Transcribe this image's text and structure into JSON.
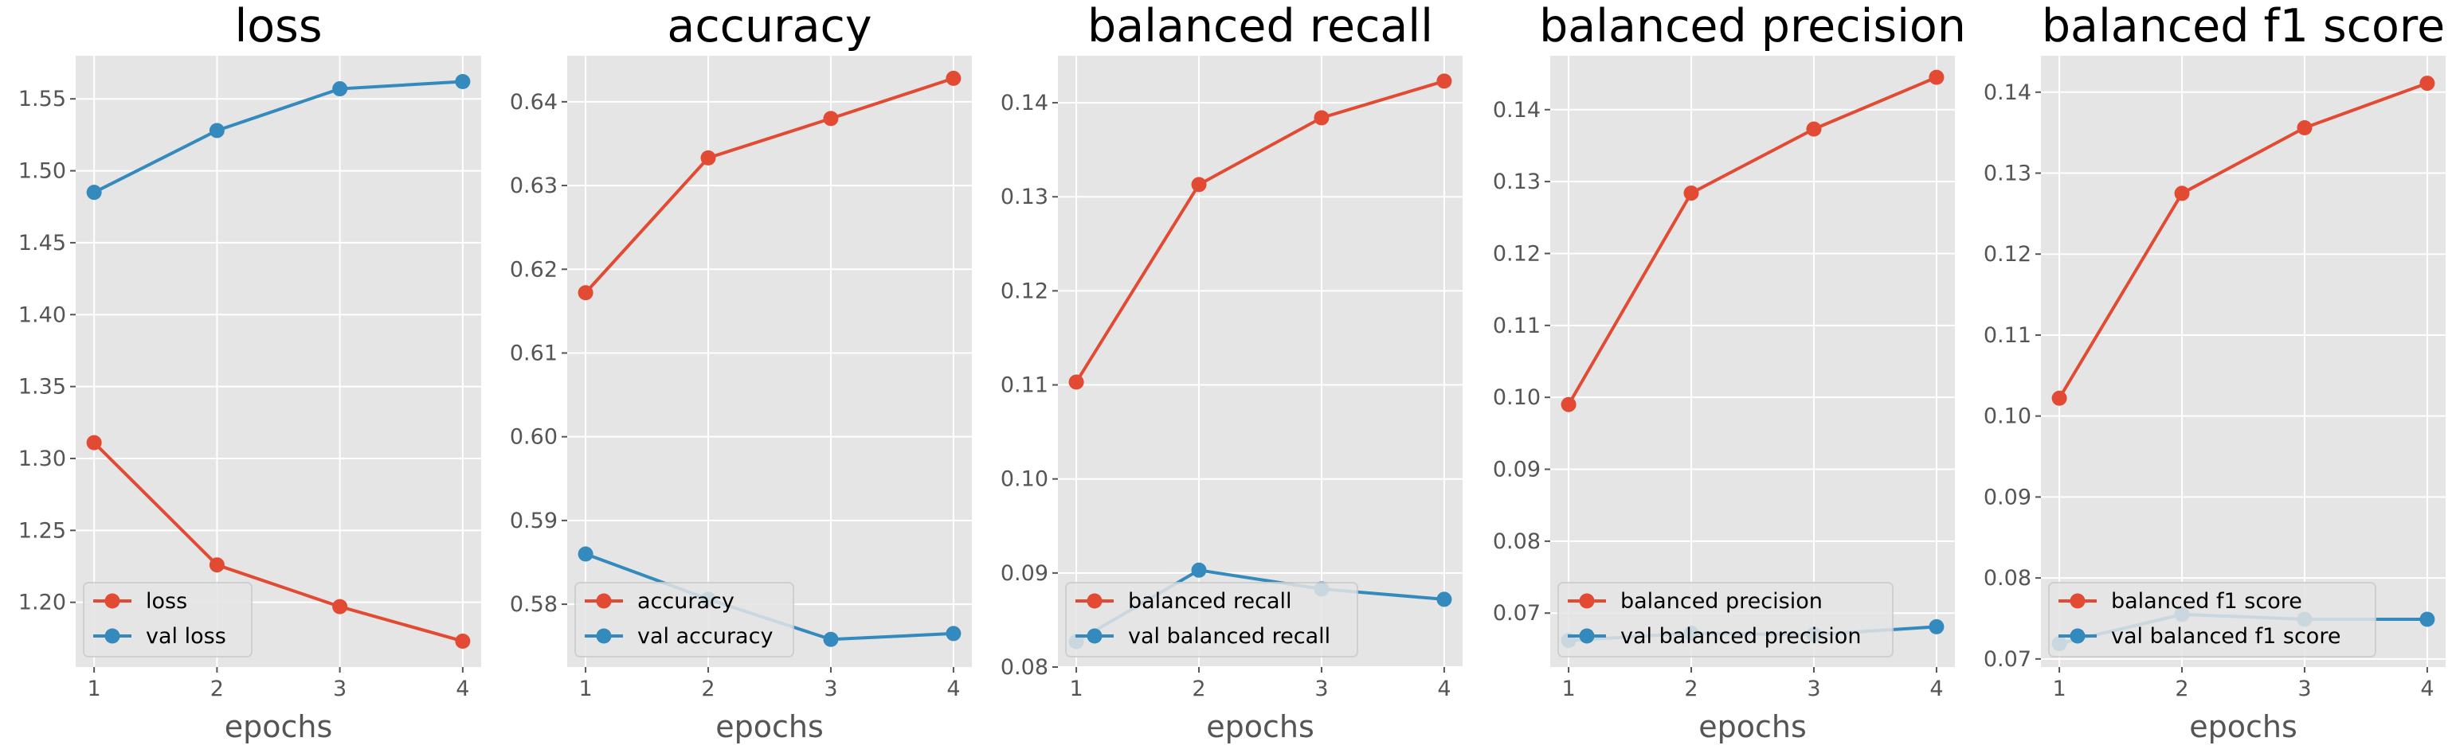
{
  "chart_data": [
    {
      "type": "line",
      "title": "loss",
      "xlabel": "epochs",
      "ylabel": "",
      "x": [
        1,
        2,
        3,
        4
      ],
      "xticks": [
        "1",
        "2",
        "3",
        "4"
      ],
      "ylim": [
        1.155,
        1.58
      ],
      "yticks": [
        1.2,
        1.25,
        1.3,
        1.35,
        1.4,
        1.45,
        1.5,
        1.55
      ],
      "ytick_labels": [
        "1.20",
        "1.25",
        "1.30",
        "1.35",
        "1.40",
        "1.45",
        "1.50",
        "1.55"
      ],
      "series": [
        {
          "name": "loss",
          "color": "#e24a33",
          "values": [
            1.311,
            1.226,
            1.197,
            1.173
          ]
        },
        {
          "name": "val loss",
          "color": "#348abd",
          "values": [
            1.485,
            1.528,
            1.557,
            1.562
          ]
        }
      ],
      "grid": true,
      "legend": "lower left"
    },
    {
      "type": "line",
      "title": "accuracy",
      "xlabel": "epochs",
      "ylabel": "",
      "x": [
        1,
        2,
        3,
        4
      ],
      "xticks": [
        "1",
        "2",
        "3",
        "4"
      ],
      "ylim": [
        0.5725,
        0.6455
      ],
      "yticks": [
        0.58,
        0.59,
        0.6,
        0.61,
        0.62,
        0.63,
        0.64
      ],
      "ytick_labels": [
        "0.58",
        "0.59",
        "0.60",
        "0.61",
        "0.62",
        "0.63",
        "0.64"
      ],
      "series": [
        {
          "name": "accuracy",
          "color": "#e24a33",
          "values": [
            0.6172,
            0.6333,
            0.638,
            0.6428
          ]
        },
        {
          "name": "val accuracy",
          "color": "#348abd",
          "values": [
            0.586,
            0.5806,
            0.5758,
            0.5765
          ]
        }
      ],
      "grid": true,
      "legend": "lower left"
    },
    {
      "type": "line",
      "title": "balanced recall",
      "xlabel": "epochs",
      "ylabel": "",
      "x": [
        1,
        2,
        3,
        4
      ],
      "xticks": [
        "1",
        "2",
        "3",
        "4"
      ],
      "ylim": [
        0.08,
        0.145
      ],
      "yticks": [
        0.08,
        0.09,
        0.1,
        0.11,
        0.12,
        0.13,
        0.14
      ],
      "ytick_labels": [
        "0.08",
        "0.09",
        "0.10",
        "0.11",
        "0.12",
        "0.13",
        "0.14"
      ],
      "series": [
        {
          "name": "balanced recall",
          "color": "#e24a33",
          "values": [
            0.1103,
            0.1313,
            0.1384,
            0.1423
          ]
        },
        {
          "name": "val balanced recall",
          "color": "#348abd",
          "values": [
            0.0827,
            0.0903,
            0.0883,
            0.0872
          ]
        }
      ],
      "grid": true,
      "legend": "lower left"
    },
    {
      "type": "line",
      "title": "balanced precision",
      "xlabel": "epochs",
      "ylabel": "",
      "x": [
        1,
        2,
        3,
        4
      ],
      "xticks": [
        "1",
        "2",
        "3",
        "4"
      ],
      "ylim": [
        0.0625,
        0.1475
      ],
      "yticks": [
        0.07,
        0.08,
        0.09,
        0.1,
        0.11,
        0.12,
        0.13,
        0.14
      ],
      "ytick_labels": [
        "0.07",
        "0.08",
        "0.09",
        "0.10",
        "0.11",
        "0.12",
        "0.13",
        "0.14"
      ],
      "series": [
        {
          "name": "balanced precision",
          "color": "#e24a33",
          "values": [
            0.099,
            0.1284,
            0.1373,
            0.1445
          ]
        },
        {
          "name": "val balanced precision",
          "color": "#348abd",
          "values": [
            0.0662,
            0.0672,
            0.067,
            0.0681
          ]
        }
      ],
      "grid": true,
      "legend": "lower left"
    },
    {
      "type": "line",
      "title": "balanced f1 score",
      "xlabel": "epochs",
      "ylabel": "",
      "x": [
        1,
        2,
        3,
        4
      ],
      "xticks": [
        "1",
        "2",
        "3",
        "4"
      ],
      "ylim": [
        0.069,
        0.1445
      ],
      "yticks": [
        0.07,
        0.08,
        0.09,
        0.1,
        0.11,
        0.12,
        0.13,
        0.14
      ],
      "ytick_labels": [
        "0.07",
        "0.08",
        "0.09",
        "0.10",
        "0.11",
        "0.12",
        "0.13",
        "0.14"
      ],
      "series": [
        {
          "name": "balanced f1 score",
          "color": "#e24a33",
          "values": [
            0.1022,
            0.1275,
            0.1356,
            0.1411
          ]
        },
        {
          "name": "val balanced f1 score",
          "color": "#348abd",
          "values": [
            0.0719,
            0.0755,
            0.0749,
            0.0749
          ]
        }
      ],
      "grid": true,
      "legend": "lower left"
    }
  ]
}
